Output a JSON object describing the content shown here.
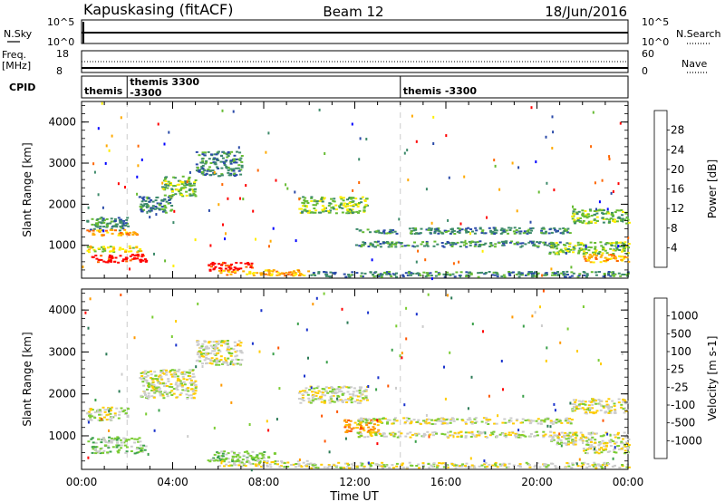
{
  "header": {
    "station": "Kapuskasing (fitACF)",
    "beam": "Beam 12",
    "date": "18/Jun/2016"
  },
  "strips": {
    "nsky_label": "N.Sky",
    "nsky_ticks": [
      "10^5",
      "10^0"
    ],
    "nsearch_label": "N.Search",
    "nsearch_ticks": [
      "10^5",
      "10^0"
    ],
    "freq_label": "Freq.",
    "freq_unit": "[MHz]",
    "freq_ticks": [
      "18",
      "8"
    ],
    "nave_label": "Nave",
    "nave_ticks": [
      "60",
      "0"
    ],
    "cpid_label": "CPID",
    "cpid_entries": [
      {
        "time": 0.0,
        "lines": [
          "themis"
        ]
      },
      {
        "time": 2.0,
        "lines": [
          "themis 3300",
          "-3300"
        ]
      },
      {
        "time": 14.0,
        "lines": [
          "themis -3300"
        ]
      }
    ]
  },
  "chart_data": [
    {
      "type": "heatmap",
      "panel": "power",
      "xlabel": "",
      "ylabel": "Slant Range [km]",
      "x_range_hours": [
        0,
        24
      ],
      "ylim": [
        200,
        4500
      ],
      "yticks": [
        "1000",
        "2000",
        "3000",
        "4000"
      ],
      "colorbar": {
        "label": "Power [dB]",
        "ticks": [
          "4",
          "8",
          "12",
          "16",
          "20",
          "24",
          "28"
        ],
        "colors": [
          "#0000ff",
          "#2a4aa8",
          "#3d8a6a",
          "#66bb33",
          "#ffee00",
          "#ffaa00",
          "#ff6600",
          "#ff0000"
        ]
      },
      "bands": [
        {
          "t": [
            0.2,
            2.0
          ],
          "r": [
            1380,
            1700
          ],
          "level": 2
        },
        {
          "t": [
            0.2,
            2.4
          ],
          "r": [
            1250,
            1400
          ],
          "level": 5
        },
        {
          "t": [
            0.2,
            2.6
          ],
          "r": [
            850,
            1000
          ],
          "level": 4
        },
        {
          "t": [
            0.4,
            2.8
          ],
          "r": [
            600,
            800
          ],
          "level": 7
        },
        {
          "t": [
            2.5,
            4.0
          ],
          "r": [
            1800,
            2200
          ],
          "level": 2
        },
        {
          "t": [
            3.5,
            5.0
          ],
          "r": [
            2200,
            2700
          ],
          "level": 3
        },
        {
          "t": [
            5.0,
            7.0
          ],
          "r": [
            2700,
            3300
          ],
          "level": 2
        },
        {
          "t": [
            5.5,
            7.5
          ],
          "r": [
            400,
            600
          ],
          "level": 7
        },
        {
          "t": [
            6.0,
            10.0
          ],
          "r": [
            280,
            420
          ],
          "level": 5
        },
        {
          "t": [
            9.5,
            12.5
          ],
          "r": [
            1800,
            2200
          ],
          "level": 3
        },
        {
          "t": [
            12.0,
            21.5
          ],
          "r": [
            1300,
            1450
          ],
          "level": 2
        },
        {
          "t": [
            12.0,
            21.0
          ],
          "r": [
            980,
            1120
          ],
          "level": 2
        },
        {
          "t": [
            10.0,
            24.0
          ],
          "r": [
            250,
            380
          ],
          "level": 2
        },
        {
          "t": [
            21.5,
            24.0
          ],
          "r": [
            1550,
            1900
          ],
          "level": 3
        },
        {
          "t": [
            20.5,
            24.0
          ],
          "r": [
            800,
            1100
          ],
          "level": 3
        },
        {
          "t": [
            22.0,
            24.0
          ],
          "r": [
            600,
            800
          ],
          "level": 5
        }
      ]
    },
    {
      "type": "heatmap",
      "panel": "velocity",
      "xlabel": "Time UT",
      "ylabel": "Slant Range [km]",
      "x_range_hours": [
        0,
        24
      ],
      "xticks": [
        "00:00",
        "04:00",
        "08:00",
        "12:00",
        "16:00",
        "20:00",
        "00:00"
      ],
      "ylim": [
        200,
        4500
      ],
      "yticks": [
        "1000",
        "2000",
        "3000",
        "4000"
      ],
      "colorbar": {
        "label": "Velocity [m s-1]",
        "ticks": [
          "1000",
          "500",
          "100",
          "25",
          "-25",
          "-100",
          "-500",
          "-1000"
        ],
        "colors": [
          "#1a33cc",
          "#2a7a55",
          "#3aa04a",
          "#7acc33",
          "#cccccc",
          "#ffcc00",
          "#ff9900",
          "#ff5500",
          "#ff0000"
        ]
      },
      "bands": [
        {
          "t": [
            0.2,
            2.0
          ],
          "r": [
            1380,
            1700
          ],
          "level": 4
        },
        {
          "t": [
            0.2,
            2.6
          ],
          "r": [
            850,
            1000
          ],
          "level": 3
        },
        {
          "t": [
            0.4,
            2.8
          ],
          "r": [
            600,
            800
          ],
          "level": 3
        },
        {
          "t": [
            2.5,
            5.0
          ],
          "r": [
            1900,
            2600
          ],
          "level": 4
        },
        {
          "t": [
            5.0,
            7.0
          ],
          "r": [
            2700,
            3300
          ],
          "level": 4
        },
        {
          "t": [
            5.5,
            8.5
          ],
          "r": [
            400,
            650
          ],
          "level": 3
        },
        {
          "t": [
            6.0,
            10.0
          ],
          "r": [
            280,
            420
          ],
          "level": 4
        },
        {
          "t": [
            9.5,
            12.5
          ],
          "r": [
            1800,
            2200
          ],
          "level": 4
        },
        {
          "t": [
            11.5,
            13.0
          ],
          "r": [
            1100,
            1400
          ],
          "level": 6
        },
        {
          "t": [
            12.0,
            21.5
          ],
          "r": [
            1300,
            1450
          ],
          "level": 4
        },
        {
          "t": [
            12.0,
            21.0
          ],
          "r": [
            980,
            1120
          ],
          "level": 4
        },
        {
          "t": [
            10.0,
            24.0
          ],
          "r": [
            250,
            380
          ],
          "level": 4
        },
        {
          "t": [
            21.5,
            24.0
          ],
          "r": [
            1550,
            1900
          ],
          "level": 4
        },
        {
          "t": [
            20.5,
            24.0
          ],
          "r": [
            800,
            1100
          ],
          "level": 4
        },
        {
          "t": [
            22.0,
            24.0
          ],
          "r": [
            600,
            800
          ],
          "level": 4
        }
      ]
    }
  ]
}
